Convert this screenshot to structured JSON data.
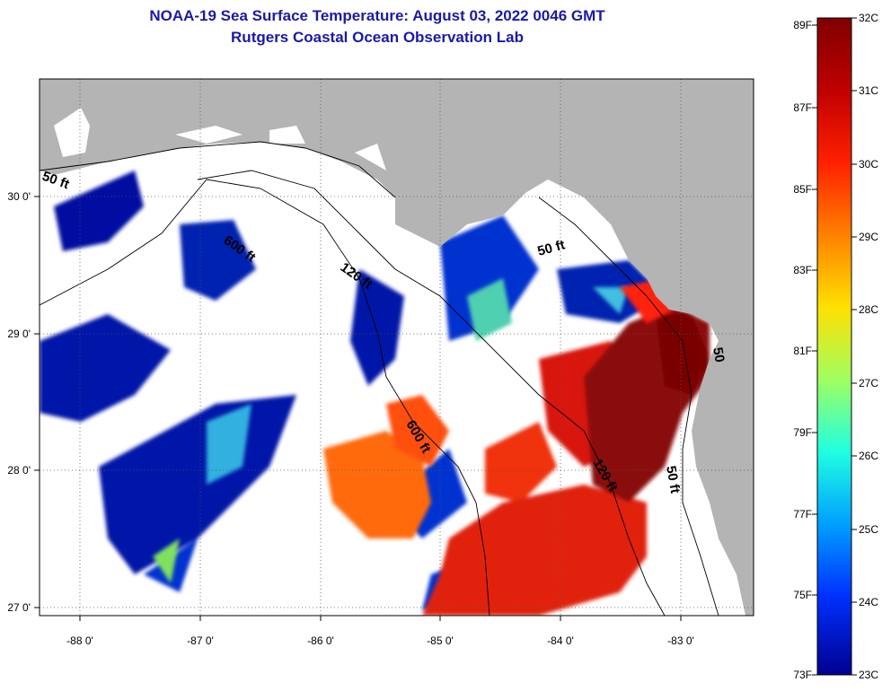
{
  "header": {
    "title": "NOAA-19 Sea Surface Temperature:  August 03, 2022 0046 GMT",
    "subtitle": "Rutgers Coastal Ocean Observation Lab"
  },
  "map": {
    "lon_ticks": [
      "-88 0'",
      "-87 0'",
      "-86 0'",
      "-85 0'",
      "-84 0'",
      "-83 0'"
    ],
    "lat_ticks": [
      "30 0'",
      "29 0'",
      "28 0'",
      "27 0'"
    ],
    "contour_labels": [
      "50 ft",
      "600 ft",
      "120 ft",
      "50 ft",
      "600 ft",
      "120 ft",
      "50 ft",
      "50"
    ],
    "colors": {
      "land": "#b4b4b4",
      "no_data": "#ffffff",
      "grid": "#555555"
    }
  },
  "colorbar": {
    "fahrenheit_labels": [
      "89F",
      "87F",
      "85F",
      "83F",
      "81F",
      "79F",
      "77F",
      "75F",
      "73F"
    ],
    "celsius_labels": [
      "32C",
      "31C",
      "30C",
      "29C",
      "28C",
      "27C",
      "26C",
      "25C",
      "24C",
      "23C"
    ],
    "gradient": [
      "#800000",
      "#c00000",
      "#ff2000",
      "#ff8000",
      "#ffe000",
      "#a0ff60",
      "#20ffe0",
      "#00a0ff",
      "#0030ff",
      "#000090"
    ]
  }
}
